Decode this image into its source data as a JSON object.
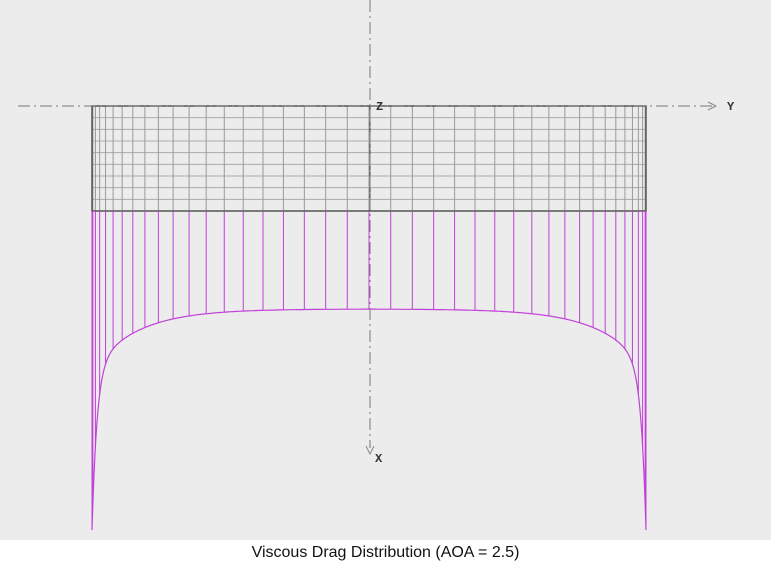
{
  "axes": {
    "z": "Z",
    "y": "Y",
    "x": "X"
  },
  "caption": "Viscous Drag Distribution (AOA = 2.5)"
}
